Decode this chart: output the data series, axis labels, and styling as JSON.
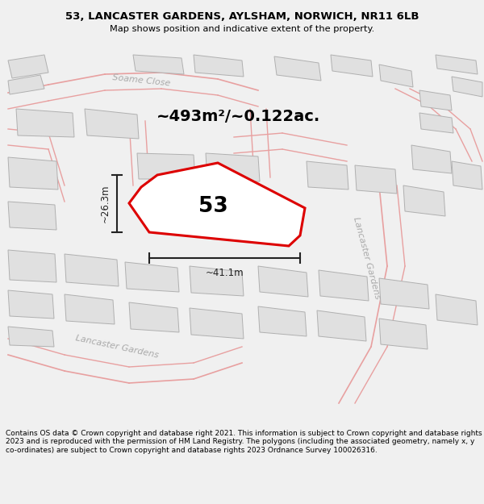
{
  "title_line1": "53, LANCASTER GARDENS, AYLSHAM, NORWICH, NR11 6LB",
  "title_line2": "Map shows position and indicative extent of the property.",
  "area_text": "~493m²/~0.122ac.",
  "width_label": "~41.1m",
  "height_label": "~26.3m",
  "plot_number": "53",
  "footer_text": "Contains OS data © Crown copyright and database right 2021. This information is subject to Crown copyright and database rights 2023 and is reproduced with the permission of HM Land Registry. The polygons (including the associated geometry, namely x, y co-ordinates) are subject to Crown copyright and database rights 2023 Ordnance Survey 100026316.",
  "bg_color": "#ffffff",
  "map_bg": "#ffffff",
  "road_outline_color": "#e8a0a0",
  "building_fill": "#e0e0e0",
  "building_stroke": "#b0b0b0",
  "road_label_color": "#b0b0b0",
  "plot_red": "#dd0000",
  "measure_color": "#222222",
  "footer_bg": "#f0f0f0",
  "title_bg": "#f0f0f0"
}
